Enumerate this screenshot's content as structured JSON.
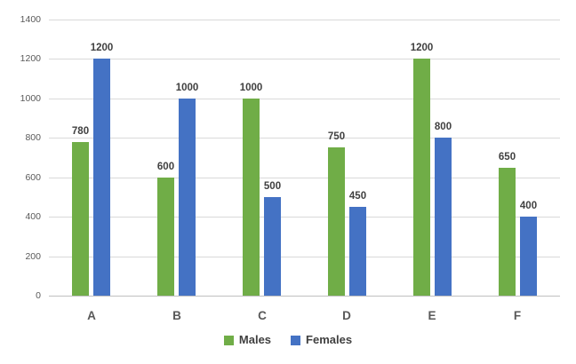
{
  "chart_data": {
    "type": "bar",
    "categories": [
      "A",
      "B",
      "C",
      "D",
      "E",
      "F"
    ],
    "series": [
      {
        "name": "Males",
        "color": "#70AD47",
        "values": [
          780,
          600,
          1000,
          750,
          1200,
          650
        ]
      },
      {
        "name": "Females",
        "color": "#4472C4",
        "values": [
          1200,
          1000,
          500,
          450,
          800,
          400
        ]
      }
    ],
    "title": "",
    "xlabel": "",
    "ylabel": "",
    "ylim": [
      0,
      1400
    ],
    "yticks": [
      0,
      200,
      400,
      600,
      800,
      1000,
      1200,
      1400
    ],
    "grid": true,
    "legend_position": "bottom",
    "data_labels": true
  },
  "colors": {
    "gridline": "#D9D9D9",
    "axis_line": "#BFBFBF",
    "tick_label": "#595959",
    "category_label": "#595959",
    "data_label": "#404040",
    "legend_label": "#404040",
    "background": "#FFFFFF"
  }
}
